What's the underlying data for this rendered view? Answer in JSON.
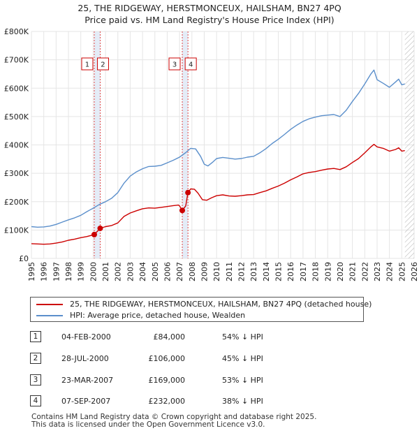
{
  "title_line1": "25, THE RIDGEWAY, HERSTMONCEUX, HAILSHAM, BN27 4PQ",
  "title_line2": "Price paid vs. HM Land Registry's House Price Index (HPI)",
  "colors": {
    "red": "#cc0000",
    "blue": "#5b8fcb",
    "shade": "#dde7f5",
    "grid": "#e5e5e5"
  },
  "chart_data": {
    "type": "line",
    "x_range": [
      1995,
      2026
    ],
    "ylim": [
      0,
      800000
    ],
    "y_ticks": [
      {
        "value": 0,
        "label": "£0"
      },
      {
        "value": 100000,
        "label": "£100K"
      },
      {
        "value": 200000,
        "label": "£200K"
      },
      {
        "value": 300000,
        "label": "£300K"
      },
      {
        "value": 400000,
        "label": "£400K"
      },
      {
        "value": 500000,
        "label": "£500K"
      },
      {
        "value": 600000,
        "label": "£600K"
      },
      {
        "value": 700000,
        "label": "£700K"
      },
      {
        "value": 800000,
        "label": "£800K"
      }
    ],
    "x_ticks": [
      "1995",
      "1996",
      "1997",
      "1998",
      "1999",
      "2000",
      "2001",
      "2002",
      "2003",
      "2004",
      "2005",
      "2006",
      "2007",
      "2008",
      "2009",
      "2010",
      "2011",
      "2012",
      "2013",
      "2014",
      "2015",
      "2016",
      "2017",
      "2018",
      "2019",
      "2020",
      "2021",
      "2022",
      "2023",
      "2024",
      "2025",
      "2026"
    ],
    "data_end": 2025.25,
    "series": [
      {
        "name": "25, THE RIDGEWAY, HERSTMONCEUX, HAILSHAM, BN27 4PQ (detached house)",
        "color": "#cc0000",
        "points": [
          [
            1995.0,
            52000
          ],
          [
            1995.5,
            51000
          ],
          [
            1996.0,
            50000
          ],
          [
            1996.5,
            51000
          ],
          [
            1997.0,
            54000
          ],
          [
            1997.5,
            58000
          ],
          [
            1998.0,
            64000
          ],
          [
            1998.5,
            68000
          ],
          [
            1999.0,
            73000
          ],
          [
            1999.5,
            77000
          ],
          [
            2000.09,
            84000
          ],
          [
            2000.57,
            106000
          ],
          [
            2001.0,
            112000
          ],
          [
            2001.5,
            116000
          ],
          [
            2002.0,
            125000
          ],
          [
            2002.5,
            148000
          ],
          [
            2003.0,
            160000
          ],
          [
            2003.5,
            168000
          ],
          [
            2004.0,
            175000
          ],
          [
            2004.5,
            178000
          ],
          [
            2005.0,
            177000
          ],
          [
            2005.5,
            180000
          ],
          [
            2006.0,
            183000
          ],
          [
            2006.5,
            186000
          ],
          [
            2006.9,
            188000
          ],
          [
            2007.0,
            185000
          ],
          [
            2007.22,
            169000
          ],
          [
            2007.5,
            185000
          ],
          [
            2007.68,
            232000
          ],
          [
            2007.9,
            245000
          ],
          [
            2008.2,
            244000
          ],
          [
            2008.5,
            230000
          ],
          [
            2008.85,
            207000
          ],
          [
            2009.2,
            205000
          ],
          [
            2009.6,
            214000
          ],
          [
            2010.0,
            221000
          ],
          [
            2010.5,
            224000
          ],
          [
            2011.0,
            220000
          ],
          [
            2011.5,
            219000
          ],
          [
            2012.0,
            221000
          ],
          [
            2012.5,
            224000
          ],
          [
            2013.0,
            225000
          ],
          [
            2013.5,
            232000
          ],
          [
            2014.0,
            238000
          ],
          [
            2014.5,
            247000
          ],
          [
            2015.0,
            255000
          ],
          [
            2015.5,
            265000
          ],
          [
            2016.0,
            277000
          ],
          [
            2016.5,
            287000
          ],
          [
            2017.0,
            298000
          ],
          [
            2017.5,
            303000
          ],
          [
            2018.0,
            306000
          ],
          [
            2018.5,
            311000
          ],
          [
            2019.0,
            315000
          ],
          [
            2019.5,
            317000
          ],
          [
            2020.0,
            313000
          ],
          [
            2020.5,
            323000
          ],
          [
            2021.0,
            338000
          ],
          [
            2021.5,
            352000
          ],
          [
            2022.0,
            372000
          ],
          [
            2022.5,
            393000
          ],
          [
            2022.75,
            402000
          ],
          [
            2023.0,
            393000
          ],
          [
            2023.5,
            388000
          ],
          [
            2024.0,
            378000
          ],
          [
            2024.5,
            384000
          ],
          [
            2024.75,
            390000
          ],
          [
            2025.0,
            378000
          ],
          [
            2025.25,
            380000
          ]
        ]
      },
      {
        "name": "HPI: Average price, detached house, Wealden",
        "color": "#5b8fcb",
        "points": [
          [
            1995.0,
            112000
          ],
          [
            1995.5,
            110000
          ],
          [
            1996.0,
            111000
          ],
          [
            1996.5,
            114000
          ],
          [
            1997.0,
            120000
          ],
          [
            1997.5,
            128000
          ],
          [
            1998.0,
            136000
          ],
          [
            1998.5,
            143000
          ],
          [
            1999.0,
            152000
          ],
          [
            1999.5,
            165000
          ],
          [
            2000.0,
            177000
          ],
          [
            2000.5,
            190000
          ],
          [
            2001.0,
            200000
          ],
          [
            2001.5,
            212000
          ],
          [
            2002.0,
            232000
          ],
          [
            2002.5,
            265000
          ],
          [
            2003.0,
            290000
          ],
          [
            2003.5,
            305000
          ],
          [
            2004.0,
            316000
          ],
          [
            2004.5,
            324000
          ],
          [
            2005.0,
            325000
          ],
          [
            2005.5,
            328000
          ],
          [
            2006.0,
            337000
          ],
          [
            2006.5,
            346000
          ],
          [
            2007.0,
            357000
          ],
          [
            2007.5,
            373000
          ],
          [
            2007.9,
            388000
          ],
          [
            2008.3,
            386000
          ],
          [
            2008.7,
            360000
          ],
          [
            2009.0,
            332000
          ],
          [
            2009.3,
            326000
          ],
          [
            2009.7,
            340000
          ],
          [
            2010.0,
            352000
          ],
          [
            2010.5,
            356000
          ],
          [
            2011.0,
            353000
          ],
          [
            2011.5,
            350000
          ],
          [
            2012.0,
            352000
          ],
          [
            2012.5,
            357000
          ],
          [
            2013.0,
            360000
          ],
          [
            2013.5,
            372000
          ],
          [
            2014.0,
            387000
          ],
          [
            2014.5,
            405000
          ],
          [
            2015.0,
            420000
          ],
          [
            2015.5,
            437000
          ],
          [
            2016.0,
            455000
          ],
          [
            2016.5,
            470000
          ],
          [
            2017.0,
            483000
          ],
          [
            2017.5,
            492000
          ],
          [
            2018.0,
            498000
          ],
          [
            2018.5,
            503000
          ],
          [
            2019.0,
            505000
          ],
          [
            2019.5,
            507000
          ],
          [
            2020.0,
            500000
          ],
          [
            2020.5,
            522000
          ],
          [
            2021.0,
            553000
          ],
          [
            2021.5,
            582000
          ],
          [
            2022.0,
            615000
          ],
          [
            2022.5,
            650000
          ],
          [
            2022.75,
            664000
          ],
          [
            2023.0,
            630000
          ],
          [
            2023.5,
            617000
          ],
          [
            2024.0,
            603000
          ],
          [
            2024.5,
            622000
          ],
          [
            2024.75,
            632000
          ],
          [
            2025.0,
            612000
          ],
          [
            2025.25,
            615000
          ]
        ]
      }
    ],
    "sales": [
      {
        "id": "1",
        "date": "04-FEB-2000",
        "x": 2000.09,
        "price": 84000,
        "price_label": "£84,000",
        "hpi": "54% ↓ HPI"
      },
      {
        "id": "2",
        "date": "28-JUL-2000",
        "x": 2000.57,
        "price": 106000,
        "price_label": "£106,000",
        "hpi": "45% ↓ HPI"
      },
      {
        "id": "3",
        "date": "23-MAR-2007",
        "x": 2007.22,
        "price": 169000,
        "price_label": "£169,000",
        "hpi": "53% ↓ HPI"
      },
      {
        "id": "4",
        "date": "07-SEP-2007",
        "x": 2007.68,
        "price": 232000,
        "price_label": "£232,000",
        "hpi": "38% ↓ HPI"
      }
    ],
    "legend": [
      {
        "label": "25, THE RIDGEWAY, HERSTMONCEUX, HAILSHAM, BN27 4PQ (detached house)",
        "color": "#cc0000"
      },
      {
        "label": "HPI: Average price, detached house, Wealden",
        "color": "#5b8fcb"
      }
    ]
  },
  "footer_line1": "Contains HM Land Registry data © Crown copyright and database right 2025.",
  "footer_line2": "This data is licensed under the Open Government Licence v3.0."
}
